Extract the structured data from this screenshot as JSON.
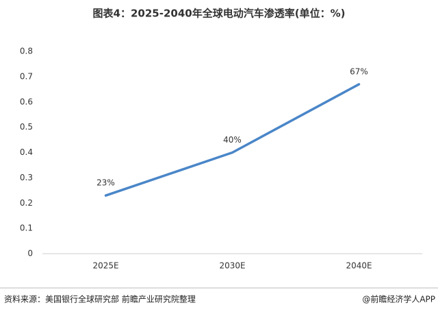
{
  "chart_data": {
    "type": "line",
    "title": "图表4：2025-2040年全球电动汽车渗透率(单位：%)",
    "categories": [
      "2025E",
      "2030E",
      "2040E"
    ],
    "values": [
      0.23,
      0.4,
      0.67
    ],
    "value_labels": [
      "23%",
      "40%",
      "67%"
    ],
    "color": "#4a86c8",
    "ylim": [
      0,
      0.8
    ],
    "yticks": [
      0,
      0.1,
      0.2,
      0.3,
      0.4,
      0.5,
      0.6,
      0.7,
      0.8
    ],
    "grid": false,
    "source": "资料来源：美国银行全球研究部 前瞻产业研究院整理",
    "watermark": "@前瞻经济学人APP"
  }
}
